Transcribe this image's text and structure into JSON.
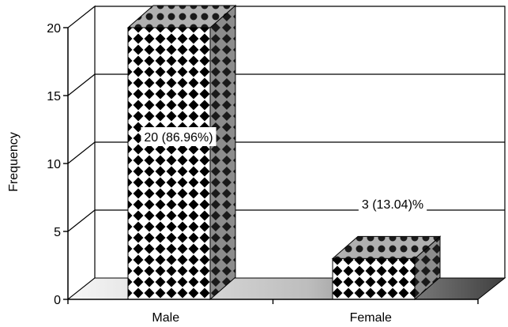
{
  "chart_data": {
    "type": "bar",
    "style": "3d-patterned",
    "categories": [
      "Male",
      "Female"
    ],
    "values": [
      20,
      3
    ],
    "data_labels": [
      "20 (86.96%)",
      "3 (13.04)%"
    ],
    "ylabel": "Frequency",
    "xlabel": "",
    "ylim": [
      0,
      20
    ],
    "yticks": [
      "0",
      "5",
      "10",
      "15",
      "20"
    ],
    "grid": true,
    "legend": "none",
    "colors": {
      "bar_front_pattern": "#000000",
      "bar_background": "#ffffff",
      "bar_side": "#8c8c8c",
      "floor_light": "#f4f4f4",
      "floor_dark": "#555555"
    }
  }
}
